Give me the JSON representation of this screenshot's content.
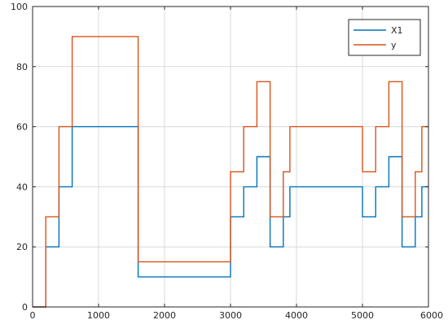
{
  "chart_data": {
    "type": "line",
    "step": true,
    "title": "",
    "xlabel": "",
    "ylabel": "",
    "xlim": [
      0,
      6000
    ],
    "ylim": [
      0,
      100
    ],
    "xticks": [
      "0",
      "1000",
      "2000",
      "3000",
      "4000",
      "5000",
      "6000"
    ],
    "yticks": [
      "0",
      "20",
      "40",
      "60",
      "80",
      "100"
    ],
    "grid": true,
    "legend_position": "top-right",
    "series": [
      {
        "name": "X1",
        "color": "#0072bd",
        "x": [
          0,
          200,
          200,
          400,
          400,
          600,
          600,
          1600,
          1600,
          3000,
          3000,
          3200,
          3200,
          3400,
          3400,
          3600,
          3600,
          3800,
          3800,
          3900,
          3900,
          5000,
          5000,
          5200,
          5200,
          5400,
          5400,
          5600,
          5600,
          5800,
          5800,
          5900,
          5900,
          6000
        ],
        "y": [
          0,
          0,
          20,
          20,
          40,
          40,
          60,
          60,
          10,
          10,
          30,
          30,
          40,
          40,
          50,
          50,
          20,
          20,
          30,
          30,
          40,
          40,
          30,
          30,
          40,
          40,
          50,
          50,
          20,
          20,
          30,
          30,
          40,
          40
        ]
      },
      {
        "name": "y",
        "color": "#d95319",
        "x": [
          0,
          200,
          200,
          400,
          400,
          600,
          600,
          1600,
          1600,
          3000,
          3000,
          3200,
          3200,
          3400,
          3400,
          3600,
          3600,
          3800,
          3800,
          3900,
          3900,
          5000,
          5000,
          5200,
          5200,
          5400,
          5400,
          5600,
          5600,
          5800,
          5800,
          5900,
          5900,
          6000
        ],
        "y": [
          0,
          0,
          30,
          30,
          60,
          60,
          90,
          90,
          15,
          15,
          45,
          45,
          60,
          60,
          75,
          75,
          30,
          30,
          45,
          45,
          60,
          60,
          45,
          45,
          60,
          60,
          75,
          75,
          30,
          30,
          45,
          45,
          60,
          60
        ]
      }
    ]
  }
}
